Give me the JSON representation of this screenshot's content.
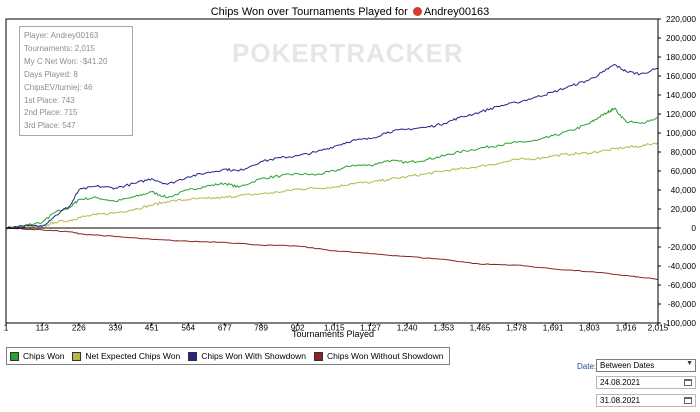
{
  "title": {
    "text": "Chips Won over Tournaments Played for",
    "player": "Andrey00163",
    "logo_icon": "poker-chip-icon"
  },
  "watermark": "POKERTRACKER",
  "stats": {
    "player": "Player: Andrey00163",
    "tournaments": "Tournaments: 2,015",
    "net_won": "My C Net Won: -$41.20",
    "days": "Days Played: 8",
    "chips_ev": "ChipsEV/turniej: 46",
    "first": "1st Place: 743",
    "second": "2nd Place: 715",
    "third": "3rd Place: 547"
  },
  "date_filter": {
    "label": "Date:",
    "mode": "Between Dates",
    "from": "24.08.2021",
    "to": "31.08.2021"
  },
  "chart_data": {
    "type": "line",
    "xlabel": "Tournaments Played",
    "ylabel": "",
    "xlim": [
      1,
      2015
    ],
    "ylim": [
      -100000,
      220000
    ],
    "x_ticks": [
      1,
      113,
      226,
      339,
      451,
      564,
      677,
      789,
      902,
      1015,
      1127,
      1240,
      1353,
      1465,
      1578,
      1691,
      1803,
      1916,
      2015
    ],
    "x_tick_labels": [
      "1",
      "113",
      "226",
      "339",
      "451",
      "564",
      "677",
      "789",
      "902",
      "1,015",
      "1,127",
      "1,240",
      "1,353",
      "1,465",
      "1,578",
      "1,691",
      "1,803",
      "1,916",
      "2,015"
    ],
    "y_ticks": [
      -100000,
      -80000,
      -60000,
      -40000,
      -20000,
      0,
      20000,
      40000,
      60000,
      80000,
      100000,
      120000,
      140000,
      160000,
      180000,
      200000,
      220000
    ],
    "y_tick_labels": [
      "-100,000",
      "-80,000",
      "-60,000",
      "-40,000",
      "-20,000",
      "0",
      "20,000",
      "40,000",
      "60,000",
      "80,000",
      "100,000",
      "120,000",
      "140,000",
      "160,000",
      "180,000",
      "200,000",
      "220,000"
    ],
    "grid": false,
    "legend_position": "bottom-left",
    "series": [
      {
        "name": "Chips Won",
        "color": "#2ca02c",
        "x": [
          1,
          50,
          113,
          150,
          200,
          226,
          280,
          339,
          400,
          451,
          500,
          564,
          620,
          677,
          720,
          789,
          850,
          902,
          960,
          1015,
          1070,
          1127,
          1180,
          1240,
          1300,
          1353,
          1400,
          1465,
          1520,
          1578,
          1640,
          1691,
          1750,
          1803,
          1830,
          1860,
          1880,
          1916,
          1960,
          2015
        ],
        "y": [
          0,
          2000,
          6000,
          16000,
          22000,
          30000,
          32000,
          28000,
          33000,
          38000,
          32000,
          40000,
          44000,
          47000,
          43000,
          52000,
          55000,
          57000,
          56000,
          60000,
          66000,
          66000,
          71000,
          69000,
          72000,
          76000,
          80000,
          84000,
          87000,
          90000,
          92000,
          97000,
          103000,
          110000,
          116000,
          122000,
          126000,
          112000,
          110000,
          116000
        ]
      },
      {
        "name": "Net Expected Chips Won",
        "color": "#b5b84b",
        "x": [
          1,
          50,
          113,
          150,
          200,
          226,
          280,
          339,
          400,
          451,
          500,
          564,
          620,
          677,
          720,
          789,
          850,
          902,
          960,
          1015,
          1070,
          1127,
          1180,
          1240,
          1300,
          1353,
          1400,
          1465,
          1520,
          1578,
          1640,
          1691,
          1750,
          1803,
          1860,
          1916,
          1960,
          2015
        ],
        "y": [
          0,
          1000,
          1000,
          6000,
          8000,
          11000,
          14000,
          16000,
          20000,
          24000,
          28000,
          30000,
          31000,
          32000,
          34000,
          36000,
          38000,
          41000,
          42000,
          43000,
          47000,
          48000,
          51000,
          54000,
          57000,
          60000,
          62000,
          65000,
          68000,
          72000,
          73000,
          76000,
          78000,
          79000,
          82000,
          85000,
          86000,
          90000
        ]
      },
      {
        "name": "Chips Won With Showdown",
        "color": "#24248c",
        "x": [
          1,
          50,
          113,
          150,
          200,
          226,
          280,
          339,
          400,
          451,
          500,
          564,
          620,
          677,
          720,
          789,
          850,
          902,
          960,
          1015,
          1070,
          1127,
          1180,
          1240,
          1300,
          1353,
          1400,
          1465,
          1520,
          1578,
          1640,
          1691,
          1750,
          1803,
          1850,
          1880,
          1916,
          1960,
          2015
        ],
        "y": [
          0,
          2000,
          2000,
          12000,
          24000,
          40000,
          44000,
          42000,
          47000,
          52000,
          46000,
          54000,
          58000,
          62000,
          60000,
          70000,
          74000,
          76000,
          80000,
          86000,
          92000,
          94000,
          101000,
          104000,
          106000,
          110000,
          116000,
          122000,
          128000,
          132000,
          138000,
          143000,
          150000,
          156000,
          165000,
          172000,
          165000,
          162000,
          168000
        ]
      },
      {
        "name": "Chips Won Without Showdown",
        "color": "#8b2323",
        "x": [
          1,
          113,
          200,
          226,
          339,
          451,
          564,
          677,
          789,
          902,
          1015,
          1127,
          1240,
          1353,
          1465,
          1578,
          1691,
          1803,
          1916,
          1960,
          2015
        ],
        "y": [
          0,
          -2000,
          -4000,
          -6000,
          -9000,
          -12000,
          -14000,
          -15000,
          -18000,
          -19000,
          -24000,
          -27000,
          -30000,
          -33000,
          -38000,
          -39000,
          -43000,
          -46000,
          -50000,
          -52000,
          -54000
        ]
      }
    ]
  }
}
